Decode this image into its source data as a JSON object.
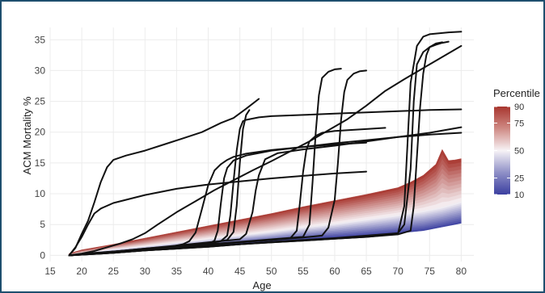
{
  "chart_data": {
    "type": "line",
    "xlabel": "Age",
    "ylabel": "ACM Mortality %",
    "xlim": [
      15,
      82
    ],
    "ylim": [
      -1,
      37
    ],
    "xticks": [
      15,
      20,
      25,
      30,
      35,
      40,
      45,
      50,
      55,
      60,
      65,
      70,
      75,
      80
    ],
    "yticks": [
      0,
      5,
      10,
      15,
      20,
      25,
      30,
      35
    ],
    "grid": true,
    "legend": {
      "title": "Percentile",
      "placement": "right",
      "ticks": [
        90,
        75,
        50,
        25,
        10
      ],
      "colors": {
        "low": "#3b3fa0",
        "mid": "#f7f3f6",
        "high": "#a8362f"
      }
    },
    "percentile_band": {
      "x": [
        18,
        20,
        25,
        30,
        35,
        40,
        45,
        50,
        55,
        60,
        65,
        70,
        72,
        74,
        75,
        76,
        77,
        78,
        79,
        80
      ],
      "p10": [
        0.0,
        0.1,
        0.4,
        0.8,
        1.1,
        1.5,
        1.9,
        2.2,
        2.6,
        2.9,
        3.2,
        3.6,
        3.8,
        4.0,
        4.2,
        4.4,
        4.6,
        4.8,
        5.0,
        5.2
      ],
      "p50": [
        0.1,
        0.4,
        1.0,
        1.5,
        2.1,
        2.7,
        3.3,
        3.9,
        4.6,
        5.2,
        5.9,
        6.6,
        7.0,
        7.3,
        7.5,
        7.7,
        7.9,
        8.2,
        8.5,
        8.8
      ],
      "p90": [
        0.3,
        0.9,
        1.8,
        2.8,
        3.8,
        4.8,
        5.8,
        6.8,
        7.9,
        8.9,
        9.9,
        11.0,
        11.9,
        13.0,
        13.9,
        14.8,
        17.2,
        15.4,
        15.5,
        15.7
      ]
    },
    "series": [
      {
        "x": [
          18,
          19,
          20,
          21,
          22,
          23,
          24,
          25,
          27,
          30,
          33,
          36,
          39,
          42,
          44,
          46,
          48
        ],
        "y": [
          0.0,
          1.2,
          3.5,
          5.6,
          8.6,
          11.9,
          14.3,
          15.5,
          16.2,
          17.0,
          18.0,
          19.0,
          20.0,
          21.5,
          22.3,
          23.8,
          25.4
        ]
      },
      {
        "x": [
          18,
          19,
          20,
          21,
          22,
          23,
          25,
          30,
          35,
          40,
          45,
          50,
          55,
          60,
          65
        ],
        "y": [
          0.0,
          1.3,
          3.0,
          5.0,
          6.8,
          7.6,
          8.5,
          9.8,
          10.8,
          11.5,
          12.0,
          12.5,
          12.9,
          13.3,
          13.6
        ]
      },
      {
        "x": [
          18,
          20,
          22,
          24,
          26,
          28,
          30,
          32,
          35,
          38,
          41,
          44,
          47,
          50,
          53,
          56,
          59,
          62,
          65,
          68,
          71,
          74,
          77,
          80
        ],
        "y": [
          0.0,
          0.3,
          0.7,
          1.3,
          1.9,
          2.6,
          3.6,
          5.0,
          7.0,
          8.8,
          10.6,
          12.2,
          13.8,
          15.3,
          16.9,
          18.5,
          20.3,
          22.1,
          24.3,
          26.7,
          28.6,
          30.4,
          32.2,
          34.0
        ]
      },
      {
        "x": [
          18,
          22,
          26,
          30,
          34,
          36,
          37,
          38,
          39,
          40,
          41,
          42,
          43,
          44,
          46,
          50,
          55,
          60,
          65
        ],
        "y": [
          0.0,
          0.4,
          0.7,
          1.0,
          1.4,
          1.8,
          2.3,
          3.7,
          7.5,
          11.4,
          13.8,
          14.8,
          15.5,
          16.0,
          16.5,
          17.1,
          17.6,
          18.0,
          18.3
        ]
      },
      {
        "x": [
          18,
          25,
          30,
          35,
          40,
          41,
          41.5,
          42,
          42.5,
          43,
          44,
          46,
          50,
          55,
          60,
          65,
          70,
          75,
          80
        ],
        "y": [
          0.0,
          0.6,
          1.0,
          1.4,
          1.8,
          2.4,
          4.0,
          8.5,
          12.5,
          14.2,
          15.4,
          16.2,
          17.0,
          17.6,
          18.2,
          18.7,
          19.2,
          19.6,
          19.9
        ]
      },
      {
        "x": [
          18,
          25,
          30,
          35,
          40,
          42,
          43,
          43.5,
          44,
          44.5,
          45,
          45.5,
          46,
          48,
          50,
          55,
          60,
          65,
          70,
          75,
          80
        ],
        "y": [
          0.0,
          0.6,
          1.1,
          1.5,
          1.9,
          2.3,
          3.2,
          6.5,
          12.0,
          17.0,
          20.5,
          21.8,
          22.0,
          22.4,
          22.6,
          22.8,
          23.0,
          23.2,
          23.4,
          23.6,
          23.7
        ]
      },
      {
        "x": [
          18,
          25,
          30,
          35,
          40,
          43,
          44,
          44.5,
          45,
          45.5,
          46,
          46.5
        ],
        "y": [
          0.0,
          0.6,
          1.0,
          1.5,
          2.0,
          2.5,
          3.8,
          8.0,
          15.0,
          20.5,
          22.8,
          23.6
        ]
      },
      {
        "x": [
          18,
          25,
          30,
          35,
          40,
          45,
          46,
          47,
          47.5,
          48,
          49,
          51,
          55,
          60,
          65,
          70,
          75,
          80
        ],
        "y": [
          0.0,
          0.6,
          1.1,
          1.6,
          2.1,
          2.6,
          3.5,
          7.0,
          10.5,
          13.0,
          15.6,
          16.6,
          17.2,
          17.8,
          18.5,
          19.2,
          19.9,
          20.8
        ]
      },
      {
        "x": [
          18,
          25,
          30,
          35,
          40,
          45,
          50,
          53,
          54,
          54.5,
          55,
          55.5,
          56,
          57,
          58,
          60,
          65,
          68
        ],
        "y": [
          0.0,
          0.5,
          0.9,
          1.3,
          1.7,
          2.1,
          2.5,
          2.8,
          4.0,
          8.5,
          13.5,
          17.0,
          18.5,
          19.4,
          19.9,
          20.2,
          20.5,
          20.7
        ]
      },
      {
        "x": [
          18,
          25,
          30,
          35,
          40,
          45,
          50,
          55,
          56,
          56.5,
          57,
          57.5,
          58,
          59,
          60,
          61
        ],
        "y": [
          0.0,
          0.5,
          0.9,
          1.3,
          1.8,
          2.2,
          2.6,
          3.0,
          5.0,
          12.0,
          20.0,
          26.0,
          28.8,
          29.8,
          30.2,
          30.3
        ]
      },
      {
        "x": [
          18,
          25,
          30,
          35,
          40,
          45,
          50,
          55,
          58,
          59,
          60,
          60.5,
          61,
          61.5,
          62,
          63,
          64,
          65
        ],
        "y": [
          0.0,
          0.5,
          0.9,
          1.3,
          1.7,
          2.1,
          2.5,
          2.9,
          3.2,
          4.5,
          9.0,
          15.0,
          22.0,
          26.5,
          28.5,
          29.5,
          29.9,
          30.0
        ]
      },
      {
        "x": [
          18,
          25,
          30,
          35,
          40,
          45,
          50,
          55,
          60,
          70,
          71,
          72,
          72.5,
          73,
          74,
          75,
          76,
          77,
          78
        ],
        "y": [
          0.0,
          0.4,
          0.8,
          1.1,
          1.5,
          1.8,
          2.2,
          2.5,
          2.8,
          3.6,
          5.0,
          14.0,
          25.0,
          31.0,
          33.0,
          33.8,
          34.2,
          34.5,
          34.7
        ]
      },
      {
        "x": [
          18,
          25,
          30,
          35,
          40,
          45,
          50,
          55,
          60,
          65,
          70,
          71,
          71.5,
          72,
          73,
          74,
          75,
          76,
          77,
          78,
          80
        ],
        "y": [
          0.0,
          0.4,
          0.8,
          1.1,
          1.4,
          1.8,
          2.1,
          2.4,
          2.7,
          3.0,
          3.5,
          8.0,
          18.0,
          28.0,
          34.0,
          35.5,
          35.9,
          36.0,
          36.1,
          36.2,
          36.3
        ]
      },
      {
        "x": [
          18,
          25,
          30,
          35,
          40,
          45,
          50,
          55,
          60,
          65,
          70,
          72,
          72.5,
          73,
          73.5,
          74,
          74.5,
          75,
          76,
          77
        ],
        "y": [
          0.0,
          0.4,
          0.8,
          1.1,
          1.4,
          1.8,
          2.1,
          2.4,
          2.7,
          3.0,
          3.4,
          4.0,
          8.0,
          16.0,
          24.0,
          29.5,
          32.5,
          33.8,
          34.4,
          34.6
        ]
      }
    ]
  }
}
